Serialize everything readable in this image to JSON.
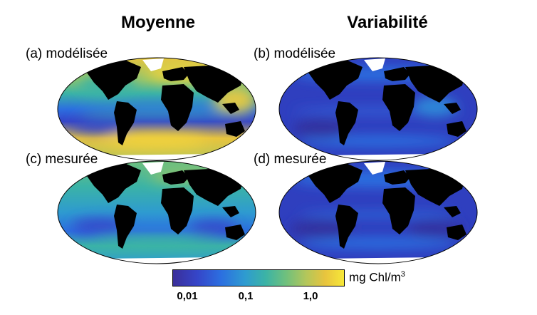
{
  "titles": {
    "left": "Moyenne",
    "right": "Variabilité"
  },
  "panels": [
    {
      "id": "a",
      "label": "(a) modélisée",
      "column": "Moyenne"
    },
    {
      "id": "b",
      "label": "(b) modélisée",
      "column": "Variabilité"
    },
    {
      "id": "c",
      "label": "(c) mesurée",
      "column": "Moyenne"
    },
    {
      "id": "d",
      "label": "(d) mesurée",
      "column": "Variabilité"
    }
  ],
  "colorbar": {
    "unit_main": "mg Chl/m",
    "unit_sup": "3",
    "ticks": [
      "0,01",
      "0,1",
      "1,0"
    ],
    "colors": [
      "#3b2f9a",
      "#3545c8",
      "#2c6fe0",
      "#2e9bd0",
      "#3bb3a6",
      "#6fc07d",
      "#b4c65a",
      "#e8c43e",
      "#f7e838"
    ]
  },
  "colors": {
    "land": "#000000",
    "ice": "#ffffff",
    "mean_base": "#2e9bd0",
    "variability_base": "#2f3fbf"
  }
}
